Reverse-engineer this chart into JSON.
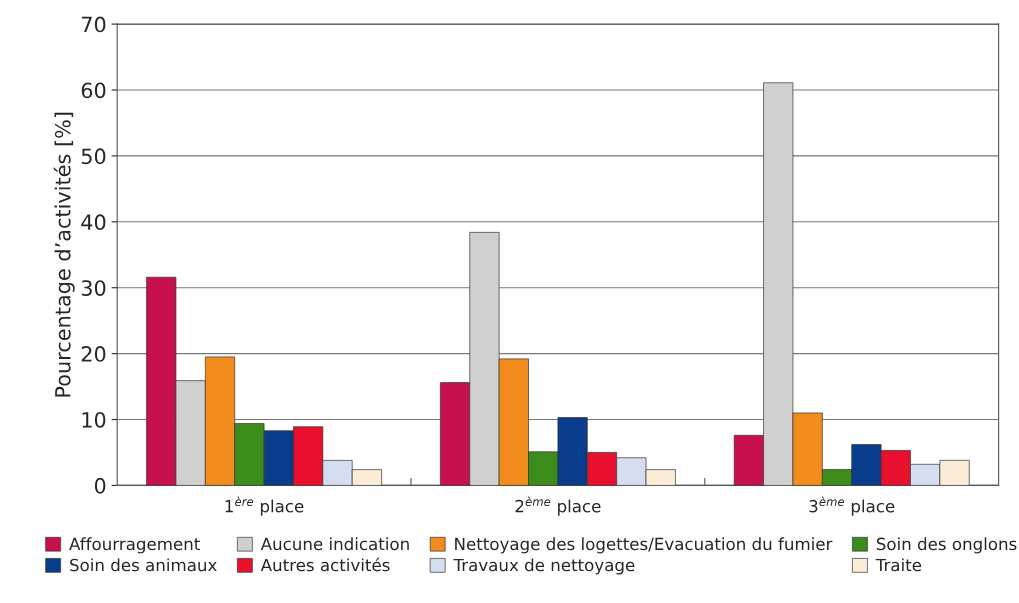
{
  "chart_data": {
    "type": "bar",
    "ylabel": "Pourcentage d’activités [%]",
    "categories": [
      "1$^{ère}$ place",
      "2$^{ème}$ place",
      "3$^{ème}$ place"
    ],
    "series": [
      {
        "name": "Affourragement",
        "color": "#c8104e",
        "values": [
          31.6,
          15.6,
          7.6
        ]
      },
      {
        "name": "Aucune indication",
        "color": "#d0d0d0",
        "values": [
          15.9,
          38.4,
          61.1
        ]
      },
      {
        "name": "Nettoyage des logettes/Evacuation du fumier",
        "color": "#f28c1c",
        "values": [
          19.5,
          19.2,
          11.0
        ]
      },
      {
        "name": "Soin des onglons",
        "color": "#3c8c1c",
        "values": [
          9.4,
          5.1,
          2.4
        ]
      },
      {
        "name": "Soin des animaux",
        "color": "#0a3c8c",
        "values": [
          8.3,
          10.3,
          6.2
        ]
      },
      {
        "name": "Autres activités",
        "color": "#e8102c",
        "values": [
          8.9,
          5.0,
          5.3
        ]
      },
      {
        "name": "Travaux de nettoyage",
        "color": "#d4def0",
        "values": [
          3.8,
          4.2,
          3.2
        ]
      },
      {
        "name": "Traite",
        "color": "#fbecd8",
        "values": [
          2.4,
          2.4,
          3.8
        ]
      }
    ],
    "ylim": [
      0,
      70
    ],
    "yticks": [
      0,
      10,
      20,
      30,
      40,
      50,
      60,
      70
    ],
    "grid": "y",
    "legend": "bottom"
  }
}
